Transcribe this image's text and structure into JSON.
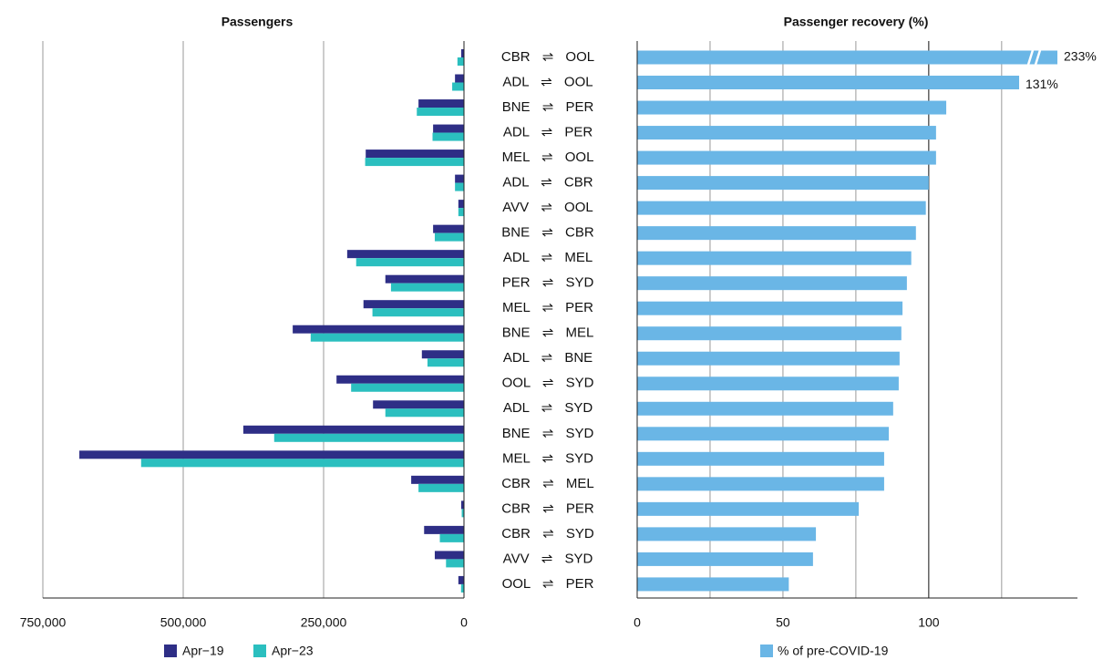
{
  "chart_data": [
    {
      "type": "hbar",
      "title": "Passengers",
      "categories": [
        "CBR ⇌ OOL",
        "ADL ⇌ OOL",
        "BNE ⇌ PER",
        "ADL ⇌ PER",
        "MEL ⇌ OOL",
        "ADL ⇌ CBR",
        "AVV ⇌ OOL",
        "BNE ⇌ CBR",
        "ADL ⇌ MEL",
        "PER ⇌ SYD",
        "MEL ⇌ PER",
        "BNE ⇌ MEL",
        "ADL ⇌ BNE",
        "OOL ⇌ SYD",
        "ADL ⇌ SYD",
        "BNE ⇌ SYD",
        "MEL ⇌ SYD",
        "CBR ⇌ MEL",
        "CBR ⇌ PER",
        "CBR ⇌ SYD",
        "AVV ⇌ SYD",
        "OOL ⇌ PER"
      ],
      "series": [
        {
          "name": "Apr−19",
          "color": "#2e2e86",
          "values": [
            5000,
            16000,
            81000,
            55000,
            175000,
            16000,
            10000,
            55000,
            208000,
            140000,
            179000,
            305000,
            75000,
            227000,
            162000,
            393000,
            685000,
            94000,
            5000,
            71000,
            52000,
            10000
          ]
        },
        {
          "name": "Apr−23",
          "color": "#2bbfbf",
          "values": [
            11650,
            21000,
            84000,
            56000,
            176000,
            16000,
            10000,
            52000,
            192000,
            130000,
            163000,
            273000,
            65000,
            201000,
            140000,
            338000,
            575000,
            81000,
            4000,
            43000,
            32000,
            5200
          ]
        }
      ],
      "xlim": [
        750000,
        0
      ],
      "x_reversed": true,
      "xticks": [
        {
          "value": 750000,
          "label": "750,000"
        },
        {
          "value": 500000,
          "label": "500,000"
        },
        {
          "value": 250000,
          "label": "250,000"
        },
        0
      ],
      "grid": true
    },
    {
      "type": "hbar",
      "title": "Passenger recovery (%)",
      "series": [
        {
          "name": "% of pre-COVID-19",
          "color": "#6ab6e6",
          "values": [
            233,
            131,
            106,
            102.5,
            102.5,
            100,
            99,
            95.6,
            94,
            92.5,
            91,
            90.6,
            90,
            89.7,
            87.8,
            86.3,
            84.7,
            84.7,
            76,
            61.3,
            60.3,
            52
          ],
          "value_labels": [
            "233%",
            "131%",
            null,
            null,
            null,
            null,
            null,
            null,
            null,
            null,
            null,
            null,
            null,
            null,
            null,
            null,
            null,
            null,
            null,
            null,
            null,
            null
          ]
        }
      ],
      "xlim": [
        0,
        151
      ],
      "xticks": [
        0,
        50,
        100
      ],
      "minor_xticks": [
        25,
        75,
        125
      ],
      "reference_line": 100,
      "axis_break": true,
      "grid": true
    }
  ]
}
